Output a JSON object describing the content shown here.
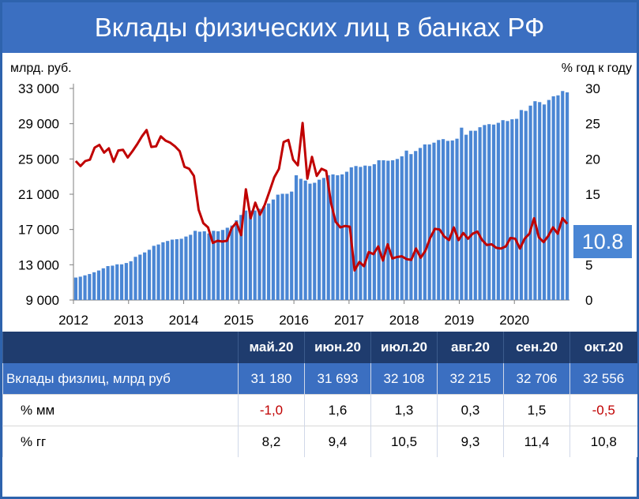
{
  "title": "Вклады физических лиц в банках РФ",
  "chart_data": {
    "type": "bar+line",
    "left_axis_label": "млрд. руб.",
    "right_axis_label": "% год к году",
    "left_ylim": [
      9000,
      33000
    ],
    "right_ylim": [
      0,
      30
    ],
    "left_ticks": [
      "9 000",
      "13 000",
      "17 000",
      "21 000",
      "25 000",
      "29 000",
      "33 000"
    ],
    "right_ticks": [
      "0",
      "5",
      "10",
      "15",
      "20",
      "25",
      "30"
    ],
    "x_labels": [
      "2012",
      "2013",
      "2014",
      "2015",
      "2016",
      "2017",
      "2018",
      "2019",
      "2020"
    ],
    "bar_color": "#4a86d4",
    "line_color": "#c00000",
    "latest_value_label": "10.8",
    "series": [
      {
        "name": "Вклады физлиц, млрд руб",
        "axis": "left",
        "values": [
          11550,
          11650,
          11800,
          11950,
          12150,
          12350,
          12600,
          12850,
          12900,
          13050,
          13050,
          13200,
          13400,
          13900,
          14150,
          14400,
          14700,
          15150,
          15300,
          15550,
          15700,
          15850,
          15900,
          15950,
          16200,
          16400,
          16850,
          16750,
          16800,
          16550,
          16850,
          16800,
          16950,
          17200,
          17450,
          18050,
          18650,
          19150,
          19150,
          19150,
          19350,
          19600,
          19950,
          20400,
          20950,
          21050,
          21050,
          21300,
          23150,
          22750,
          22550,
          22200,
          22300,
          22650,
          22850,
          23150,
          23250,
          23150,
          23250,
          23550,
          24050,
          24200,
          24100,
          24250,
          24200,
          24400,
          24850,
          24850,
          24800,
          24850,
          25000,
          25300,
          25950,
          25550,
          25900,
          26250,
          26650,
          26650,
          26850,
          27150,
          27250,
          27050,
          27100,
          27300,
          28550,
          27750,
          28200,
          28200,
          28600,
          28850,
          28950,
          28900,
          29100,
          29400,
          29300,
          29500,
          29550,
          30550,
          30450,
          31050,
          31550,
          31450,
          31180,
          31693,
          32108,
          32215,
          32706,
          32556
        ]
      },
      {
        "name": "% гг",
        "axis": "right",
        "values": [
          19.7,
          19.0,
          19.7,
          19.9,
          21.6,
          22.0,
          20.9,
          21.5,
          19.6,
          21.2,
          21.3,
          20.2,
          21.1,
          22.1,
          23.2,
          24.1,
          21.7,
          21.8,
          23.2,
          22.6,
          22.3,
          21.8,
          21.1,
          18.9,
          18.6,
          17.6,
          12.8,
          10.9,
          10.3,
          8.1,
          8.4,
          8.3,
          8.4,
          10.2,
          11.0,
          9.2,
          15.7,
          11.6,
          13.8,
          12.1,
          13.5,
          15.4,
          17.4,
          18.6,
          22.4,
          22.7,
          19.9,
          19.1,
          25.1,
          17.2,
          20.3,
          17.6,
          18.6,
          18.3,
          13.8,
          11.1,
          10.3,
          10.5,
          10.4,
          4.2,
          5.4,
          4.8,
          6.8,
          6.5,
          7.6,
          5.6,
          7.9,
          5.9,
          6.1,
          6.2,
          5.8,
          5.7,
          7.3,
          6.0,
          7.0,
          8.8,
          10.1,
          10.0,
          9.0,
          8.5,
          10.3,
          8.5,
          9.5,
          8.7,
          9.4,
          9.7,
          8.5,
          7.8,
          7.9,
          7.4,
          7.3,
          7.6,
          8.8,
          8.7,
          7.3,
          8.7,
          9.4,
          11.6,
          8.9,
          8.2,
          9.1,
          10.3,
          9.4,
          11.6,
          10.8
        ]
      }
    ]
  },
  "table": {
    "header": [
      "",
      "май.20",
      "июн.20",
      "июл.20",
      "авг.20",
      "сен.20",
      "окт.20"
    ],
    "rows": [
      {
        "label": "Вклады физлиц, млрд руб",
        "values": [
          "31 180",
          "31 693",
          "32 108",
          "32 215",
          "32 706",
          "32 556"
        ]
      },
      {
        "label": "% мм",
        "values": [
          "-1,0",
          "1,6",
          "1,3",
          "0,3",
          "1,5",
          "-0,5"
        ]
      },
      {
        "label": "% гг",
        "values": [
          "8,2",
          "9,4",
          "10,5",
          "9,3",
          "11,4",
          "10,8"
        ]
      }
    ]
  }
}
